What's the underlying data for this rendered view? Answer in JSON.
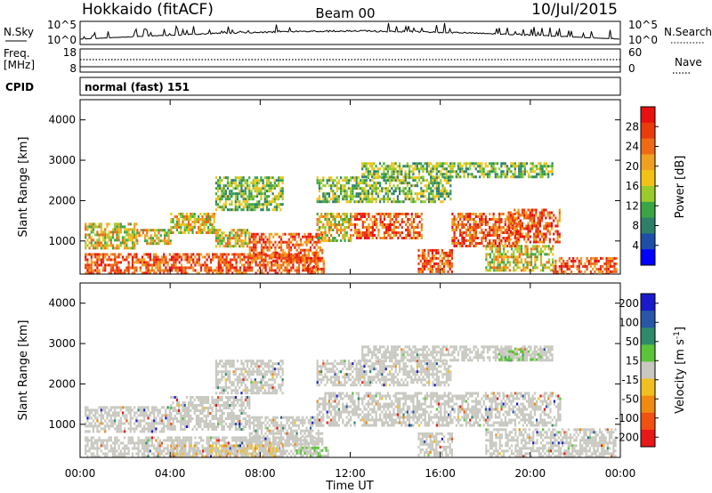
{
  "header": {
    "station": "Hokkaido (fitACF)",
    "beam": "Beam 00",
    "date": "10/Jul/2015"
  },
  "noise_panel": {
    "left_label": "N.Sky",
    "left_ticks": [
      "10^5",
      "10^0"
    ],
    "right_ticks": [
      "10^5",
      "10^0"
    ],
    "right_label": "N.Search"
  },
  "freq_panel": {
    "label_line1": "Freq.",
    "label_line2": "[MHz]",
    "left_ticks": [
      "18",
      "8"
    ],
    "right_ticks": [
      "60",
      "0"
    ],
    "right_label": "Nave"
  },
  "cpid_panel": {
    "label": "CPID",
    "text": "normal (fast) 151"
  },
  "chart_data": [
    {
      "type": "heatmap",
      "name_key": "power",
      "xlabel": "",
      "ylabel": "Slant Range [km]",
      "yticks": [
        "1000",
        "2000",
        "3000",
        "4000"
      ],
      "ylim": [
        180,
        4500
      ],
      "colorbar_label": "Power [dB]",
      "colorbar_ticks": [
        "4",
        "8",
        "12",
        "16",
        "20",
        "24",
        "28"
      ],
      "colorbar_colors": [
        "#0000ff",
        "#1f4ea8",
        "#2e7f6a",
        "#3aa545",
        "#9acb2a",
        "#f2c316",
        "#f0a020",
        "#ef6a14",
        "#e83c0c",
        "#e81010"
      ],
      "echo_regions": [
        {
          "t": [
            0.2,
            10.5
          ],
          "r": [
            200,
            700
          ],
          "level": "high"
        },
        {
          "t": [
            10.0,
            10.8
          ],
          "r": [
            200,
            600
          ],
          "level": "high"
        },
        {
          "t": [
            0.2,
            2.5
          ],
          "r": [
            850,
            1450
          ],
          "level": "mid"
        },
        {
          "t": [
            2.5,
            4.0
          ],
          "r": [
            950,
            1300
          ],
          "level": "mid"
        },
        {
          "t": [
            4.0,
            6.0
          ],
          "r": [
            1200,
            1700
          ],
          "level": "mid"
        },
        {
          "t": [
            6.0,
            7.5
          ],
          "r": [
            850,
            1300
          ],
          "level": "mid"
        },
        {
          "t": [
            7.5,
            10.8
          ],
          "r": [
            500,
            1200
          ],
          "level": "high"
        },
        {
          "t": [
            10.5,
            12.0
          ],
          "r": [
            1000,
            1700
          ],
          "level": "mid"
        },
        {
          "t": [
            12.0,
            15.2
          ],
          "r": [
            1100,
            1700
          ],
          "level": "high"
        },
        {
          "t": [
            15.0,
            16.5
          ],
          "r": [
            250,
            800
          ],
          "level": "high"
        },
        {
          "t": [
            16.5,
            19.5
          ],
          "r": [
            900,
            1700
          ],
          "level": "high"
        },
        {
          "t": [
            19.0,
            21.3
          ],
          "r": [
            1000,
            1800
          ],
          "level": "high"
        },
        {
          "t": [
            18.0,
            21.0
          ],
          "r": [
            300,
            900
          ],
          "level": "mid"
        },
        {
          "t": [
            21.0,
            23.8
          ],
          "r": [
            200,
            600
          ],
          "level": "high"
        },
        {
          "t": [
            6.0,
            9.0
          ],
          "r": [
            1800,
            2600
          ],
          "level": "low"
        },
        {
          "t": [
            10.5,
            16.5
          ],
          "r": [
            2000,
            2600
          ],
          "level": "low"
        },
        {
          "t": [
            12.5,
            21.0
          ],
          "r": [
            2600,
            2950
          ],
          "level": "low"
        }
      ]
    },
    {
      "type": "heatmap",
      "name_key": "velocity",
      "xlabel": "Time UT",
      "xticks": [
        "00:00",
        "04:00",
        "08:00",
        "12:00",
        "16:00",
        "20:00",
        "00:00"
      ],
      "xlim": [
        0,
        24
      ],
      "ylabel": "Slant Range [km]",
      "yticks": [
        "1000",
        "2000",
        "3000",
        "4000"
      ],
      "ylim": [
        180,
        4500
      ],
      "colorbar_label": "Velocity [m s^-1]",
      "colorbar_ticks": [
        "200",
        "100",
        "50",
        "15",
        "-15",
        "-50",
        "-100",
        "-200"
      ],
      "colorbar_colors": [
        "#1a1acc",
        "#2a56a8",
        "#2e8a6a",
        "#5bc43a",
        "#c8c8c0",
        "#f0c020",
        "#f08a10",
        "#f05010",
        "#e81818"
      ],
      "echo_regions": [
        {
          "t": [
            0.2,
            10.5
          ],
          "r": [
            200,
            700
          ],
          "level": "zero"
        },
        {
          "t": [
            0.2,
            4.0
          ],
          "r": [
            850,
            1450
          ],
          "level": "zero"
        },
        {
          "t": [
            4.0,
            7.5
          ],
          "r": [
            900,
            1700
          ],
          "level": "zero"
        },
        {
          "t": [
            7.5,
            10.8
          ],
          "r": [
            500,
            1200
          ],
          "level": "zero"
        },
        {
          "t": [
            10.5,
            21.3
          ],
          "r": [
            1000,
            1800
          ],
          "level": "zero"
        },
        {
          "t": [
            15.0,
            16.5
          ],
          "r": [
            250,
            800
          ],
          "level": "zero"
        },
        {
          "t": [
            18.0,
            23.8
          ],
          "r": [
            200,
            900
          ],
          "level": "zero"
        },
        {
          "t": [
            6.0,
            9.0
          ],
          "r": [
            1800,
            2600
          ],
          "level": "zero"
        },
        {
          "t": [
            10.5,
            16.5
          ],
          "r": [
            2000,
            2600
          ],
          "level": "zero"
        },
        {
          "t": [
            12.5,
            21.0
          ],
          "r": [
            2600,
            2950
          ],
          "level": "zero"
        },
        {
          "t": [
            4.0,
            9.0
          ],
          "r": [
            200,
            500
          ],
          "level": "neg"
        },
        {
          "t": [
            9.5,
            11.0
          ],
          "r": [
            200,
            450
          ],
          "level": "pos"
        },
        {
          "t": [
            18.5,
            20.5
          ],
          "r": [
            2600,
            2900
          ],
          "level": "pos"
        }
      ]
    }
  ]
}
